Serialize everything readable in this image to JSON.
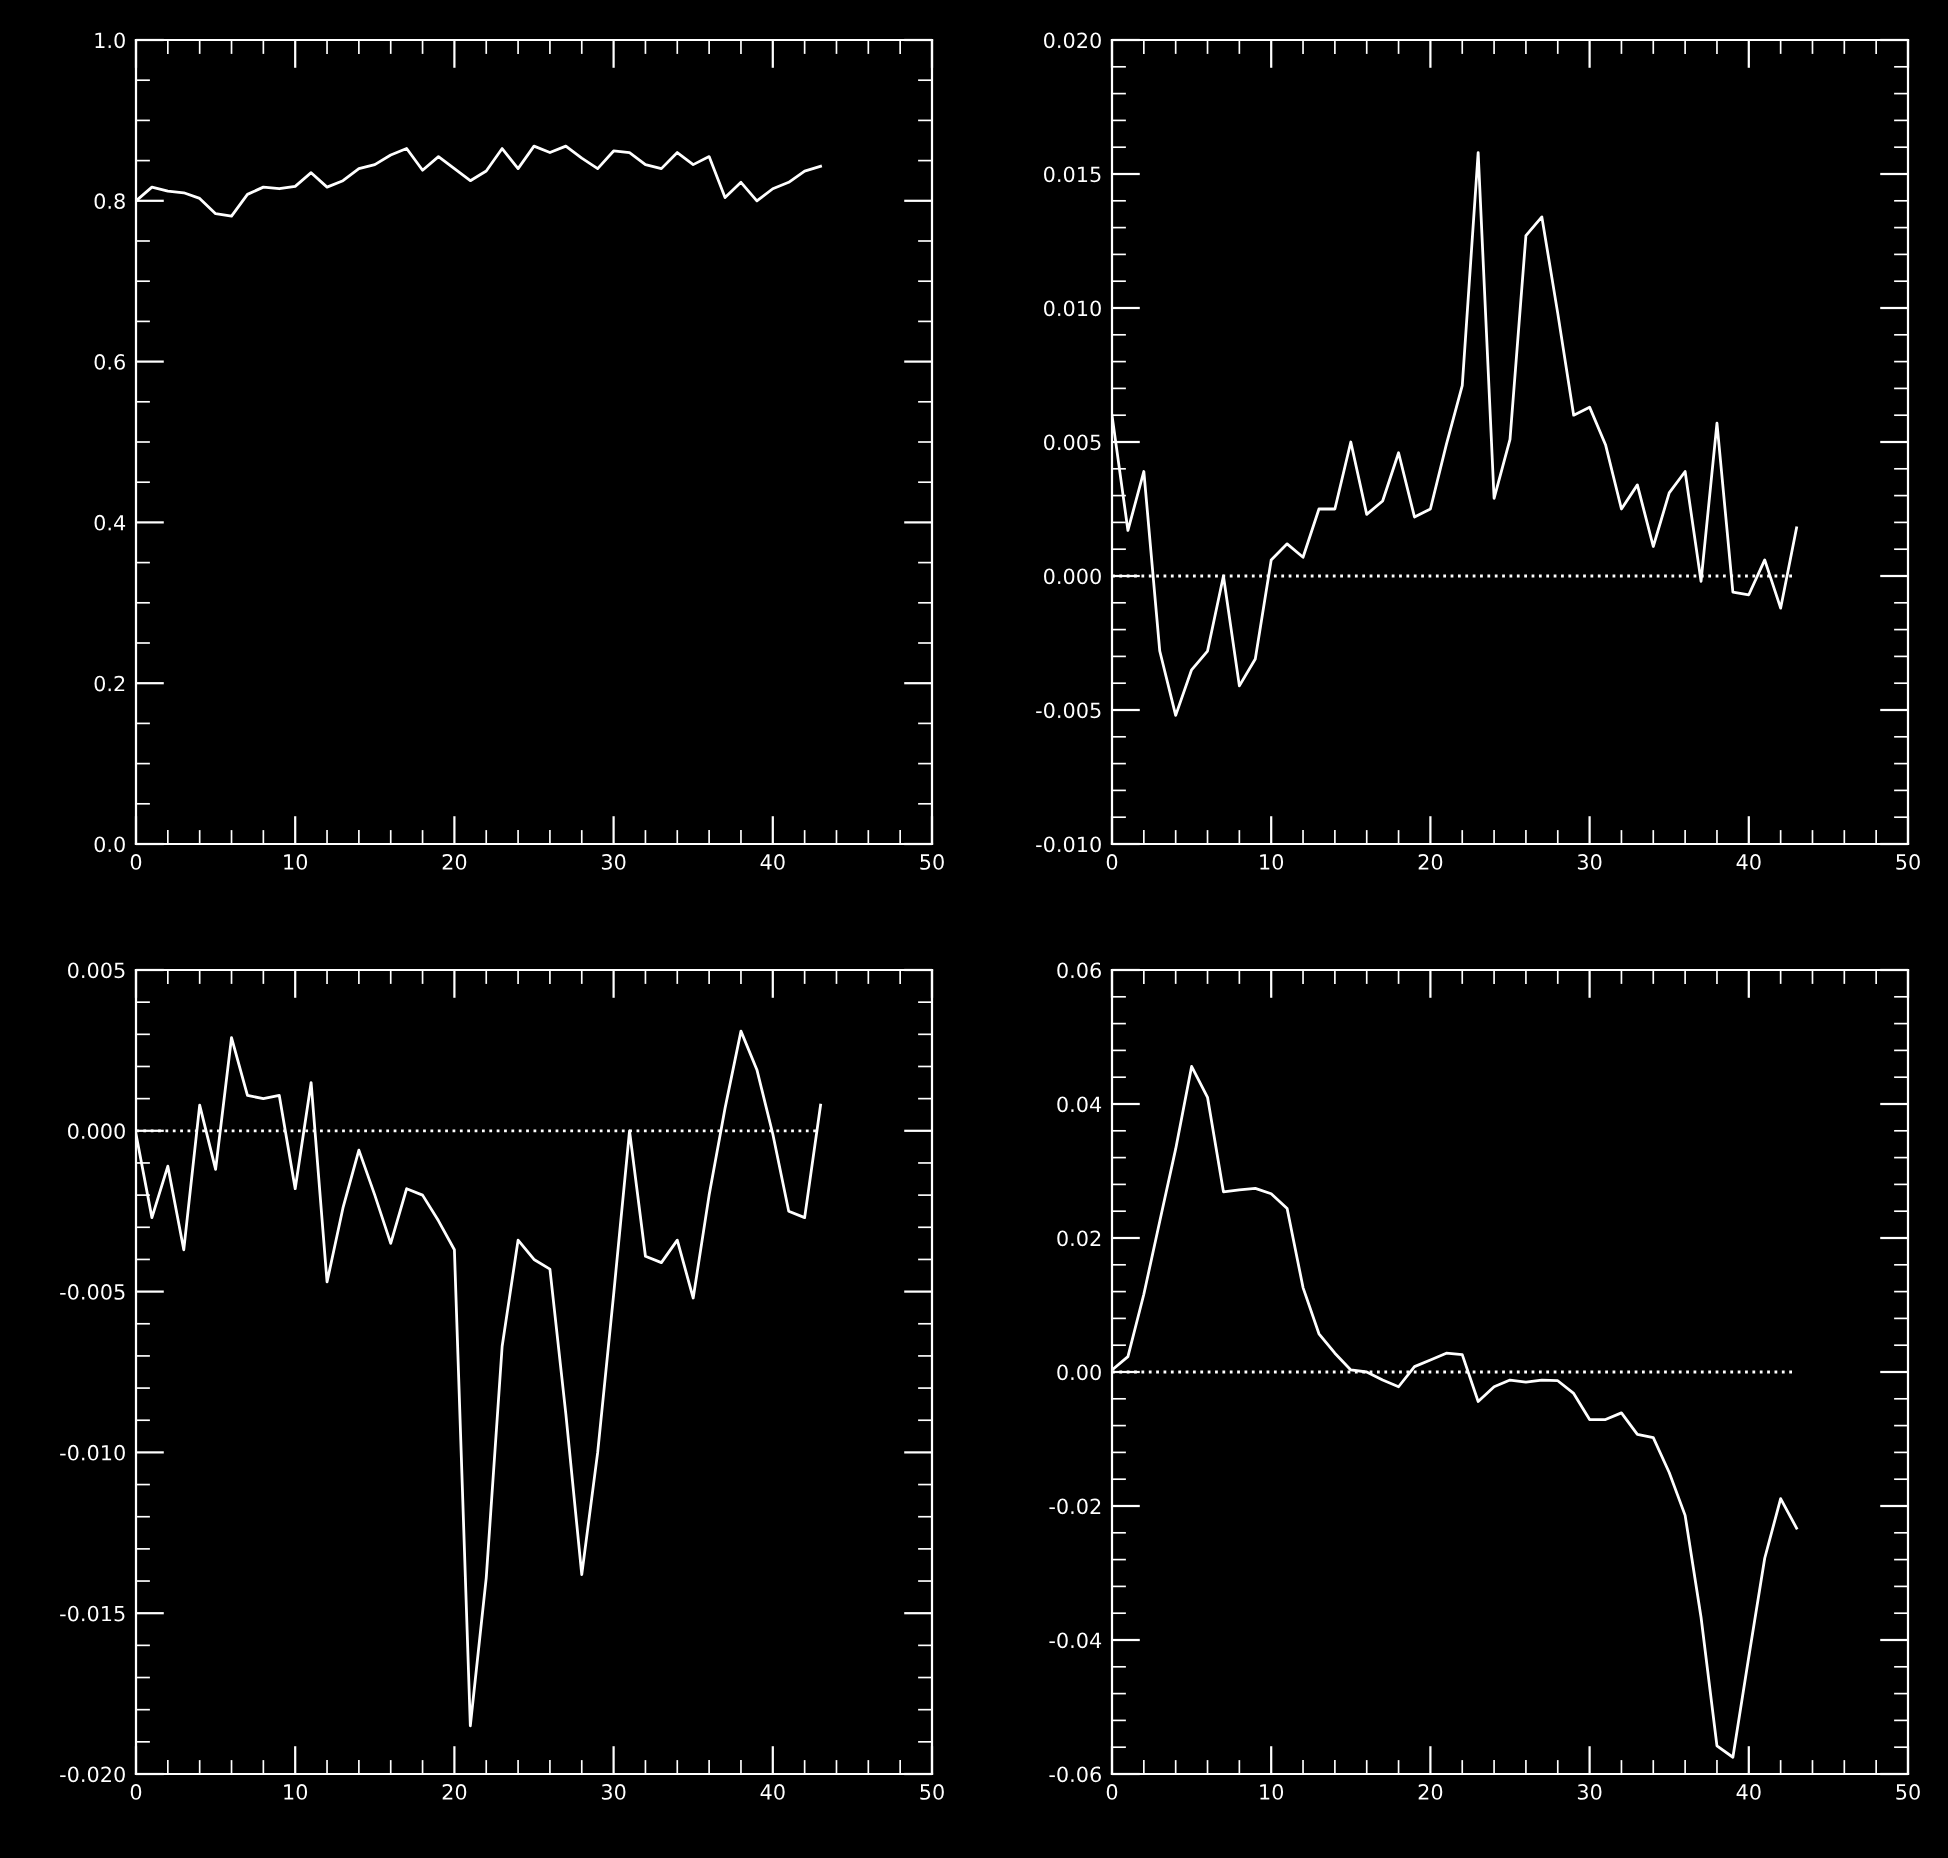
{
  "chart_data": [
    {
      "type": "line",
      "x": [
        0,
        1,
        2,
        3,
        4,
        5,
        6,
        7,
        8,
        9,
        10,
        11,
        12,
        13,
        14,
        15,
        16,
        17,
        18,
        19,
        20,
        21,
        22,
        23,
        24,
        25,
        26,
        27,
        28,
        29,
        30,
        31,
        32,
        33,
        34,
        35,
        36,
        37,
        38,
        39,
        40,
        41,
        42,
        43
      ],
      "series": [
        {
          "color": "#ffffff",
          "values": [
            0.8,
            0.817,
            0.812,
            0.81,
            0.803,
            0.784,
            0.781,
            0.808,
            0.817,
            0.815,
            0.818,
            0.835,
            0.817,
            0.825,
            0.84,
            0.845,
            0.857,
            0.865,
            0.838,
            0.855,
            0.84,
            0.825,
            0.837,
            0.865,
            0.84,
            0.868,
            0.86,
            0.868,
            0.853,
            0.84,
            0.862,
            0.86,
            0.845,
            0.84,
            0.86,
            0.845,
            0.855,
            0.804,
            0.823,
            0.8,
            0.815,
            0.823,
            0.837,
            0.843
          ]
        }
      ],
      "xlim": [
        0,
        50
      ],
      "xticks": [
        0,
        10,
        20,
        30,
        40,
        50
      ],
      "ylim": [
        0,
        1
      ],
      "yticks": [
        {
          "value": 0,
          "label": "0.0"
        },
        {
          "value": 0.2,
          "label": "0.2"
        },
        {
          "value": 0.4,
          "label": "0.4"
        },
        {
          "value": 0.6,
          "label": "0.6"
        },
        {
          "value": 0.8,
          "label": "0.8"
        },
        {
          "value": 1,
          "label": "1.0"
        }
      ],
      "grid": false,
      "line_style": "solid",
      "marker": "none"
    },
    {
      "type": "line",
      "x": [
        0,
        1,
        2,
        3,
        4,
        5,
        6,
        7,
        8,
        9,
        10,
        11,
        12,
        13,
        14,
        15,
        16,
        17,
        18,
        19,
        20,
        21,
        22,
        23,
        24,
        25,
        26,
        27,
        28,
        29,
        30,
        31,
        32,
        33,
        34,
        35,
        36,
        37,
        38,
        39,
        40,
        41,
        42,
        43
      ],
      "series": [
        {
          "color": "#ffffff",
          "values": [
            0.006,
            0.0017,
            0.0039,
            -0.0028,
            -0.0052,
            -0.0035,
            -0.0028,
            0.0,
            -0.0041,
            -0.0031,
            0.0006,
            0.0012,
            0.0007,
            0.0025,
            0.0025,
            0.005,
            0.0023,
            0.0028,
            0.0046,
            0.0022,
            0.0025,
            0.0049,
            0.0071,
            0.0158,
            0.0029,
            0.0051,
            0.0127,
            0.0134,
            0.0098,
            0.006,
            0.0063,
            0.0049,
            0.0025,
            0.0034,
            0.0011,
            0.0031,
            0.0039,
            -0.0002,
            0.0057,
            -0.0006,
            -0.0007,
            0.0006,
            -0.0012,
            0.0018
          ]
        }
      ],
      "xlim": [
        0,
        50
      ],
      "xticks": [
        0,
        10,
        20,
        30,
        40,
        50
      ],
      "ylim": [
        -0.01,
        0.02
      ],
      "yticks": [
        {
          "value": -0.01,
          "label": "-0.010"
        },
        {
          "value": -0.005,
          "label": "-0.005"
        },
        {
          "value": 0,
          "label": "0.000"
        },
        {
          "value": 0.005,
          "label": "0.005"
        },
        {
          "value": 0.01,
          "label": "0.010"
        },
        {
          "value": 0.015,
          "label": "0.015"
        },
        {
          "value": 0.02,
          "label": "0.020"
        }
      ],
      "ref_lines": [
        {
          "axis": "y",
          "value": 0,
          "color": "#ffffff",
          "line_style": "dotted"
        }
      ],
      "grid": false,
      "line_style": "solid",
      "marker": "none"
    },
    {
      "type": "line",
      "x": [
        0,
        1,
        2,
        3,
        4,
        5,
        6,
        7,
        8,
        9,
        10,
        11,
        12,
        13,
        14,
        15,
        16,
        17,
        18,
        19,
        20,
        21,
        22,
        23,
        24,
        25,
        26,
        27,
        28,
        29,
        30,
        31,
        32,
        33,
        34,
        35,
        36,
        37,
        38,
        39,
        40,
        41,
        42,
        43
      ],
      "series": [
        {
          "color": "#ffffff",
          "values": [
            -0.0001,
            -0.0027,
            -0.0011,
            -0.0037,
            0.0008,
            -0.0012,
            0.0029,
            0.0011,
            0.001,
            0.0011,
            -0.0018,
            0.0015,
            -0.0047,
            -0.0024,
            -0.0006,
            -0.002,
            -0.0035,
            -0.0018,
            -0.002,
            -0.0028,
            -0.0037,
            -0.0185,
            -0.0139,
            -0.0067,
            -0.0034,
            -0.004,
            -0.0043,
            -0.0088,
            -0.0138,
            -0.01,
            -0.0051,
            0.0,
            -0.0039,
            -0.0041,
            -0.0034,
            -0.0052,
            -0.002,
            0.0007,
            0.0031,
            0.0019,
            -0.0001,
            -0.0025,
            -0.0027,
            0.0008
          ]
        }
      ],
      "xlim": [
        0,
        50
      ],
      "xticks": [
        0,
        10,
        20,
        30,
        40,
        50
      ],
      "ylim": [
        -0.02,
        0.005
      ],
      "yticks": [
        {
          "value": -0.02,
          "label": "-0.020"
        },
        {
          "value": -0.015,
          "label": "-0.015"
        },
        {
          "value": -0.01,
          "label": "-0.010"
        },
        {
          "value": -0.005,
          "label": "-0.005"
        },
        {
          "value": 0,
          "label": "0.000"
        },
        {
          "value": 0.005,
          "label": "0.005"
        }
      ],
      "ref_lines": [
        {
          "axis": "y",
          "value": 0,
          "color": "#ffffff",
          "line_style": "dotted"
        }
      ],
      "grid": false,
      "line_style": "solid",
      "marker": "none"
    },
    {
      "type": "line",
      "x": [
        0,
        1,
        2,
        3,
        4,
        5,
        6,
        7,
        8,
        9,
        10,
        11,
        12,
        13,
        14,
        15,
        16,
        17,
        18,
        19,
        20,
        21,
        22,
        23,
        24,
        25,
        26,
        27,
        28,
        29,
        30,
        31,
        32,
        33,
        34,
        35,
        36,
        37,
        38,
        39,
        40,
        41,
        42,
        43
      ],
      "series": [
        {
          "color": "#ffffff",
          "values": [
            0.0003,
            0.0023,
            0.0116,
            0.0225,
            0.0333,
            0.0456,
            0.041,
            0.0269,
            0.0272,
            0.0274,
            0.0266,
            0.0244,
            0.0126,
            0.0057,
            0.0028,
            0.0003,
            0.0,
            -0.0012,
            -0.0022,
            0.0008,
            0.0018,
            0.0028,
            0.0026,
            -0.0044,
            -0.0022,
            -0.0012,
            -0.0015,
            -0.0012,
            -0.0013,
            -0.0032,
            -0.0071,
            -0.0071,
            -0.0061,
            -0.0093,
            -0.0098,
            -0.015,
            -0.0214,
            -0.0366,
            -0.0558,
            -0.0575,
            -0.0425,
            -0.0278,
            -0.0189,
            -0.0233
          ]
        }
      ],
      "xlim": [
        0,
        50
      ],
      "xticks": [
        0,
        10,
        20,
        30,
        40,
        50
      ],
      "ylim": [
        -0.06,
        0.06
      ],
      "yticks": [
        {
          "value": -0.06,
          "label": "-0.06"
        },
        {
          "value": -0.04,
          "label": "-0.04"
        },
        {
          "value": -0.02,
          "label": "-0.02"
        },
        {
          "value": 0,
          "label": "0.00"
        },
        {
          "value": 0.02,
          "label": "0.02"
        },
        {
          "value": 0.04,
          "label": "0.04"
        },
        {
          "value": 0.06,
          "label": "0.06"
        }
      ],
      "ref_lines": [
        {
          "axis": "y",
          "value": 0,
          "color": "#ffffff",
          "line_style": "dotted"
        }
      ],
      "grid": false,
      "line_style": "solid",
      "marker": "none"
    }
  ]
}
